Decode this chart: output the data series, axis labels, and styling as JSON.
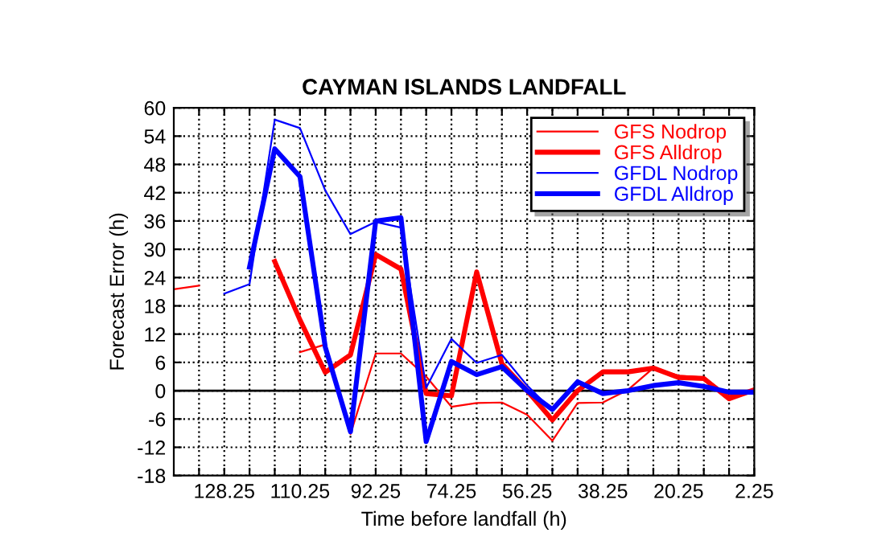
{
  "chart_data": {
    "type": "line",
    "title": "CAYMAN ISLANDS LANDFALL",
    "xlabel": "Time before landfall (h)",
    "ylabel": "Forecast Error (h)",
    "x": [
      140.25,
      134.25,
      128.25,
      122.25,
      116.25,
      110.25,
      104.25,
      98.25,
      92.25,
      86.25,
      80.25,
      74.25,
      68.25,
      62.25,
      56.25,
      50.25,
      44.25,
      38.25,
      32.25,
      26.25,
      20.25,
      14.25,
      8.25,
      2.25
    ],
    "series": [
      {
        "name": "GFS Nodrop",
        "color": "#ff0000",
        "values": [
          21.5,
          22.3,
          null,
          null,
          null,
          8.2,
          9.8,
          -9.2,
          7.9,
          7.9,
          3.0,
          -3.4,
          -2.6,
          -2.5,
          -5.1,
          -10.6,
          -2.6,
          -2.5,
          0.2,
          4.8,
          3.2,
          2.8,
          -1.1,
          0.2
        ]
      },
      {
        "name": "GFS Alldrop",
        "color": "#ff0000",
        "values": [
          null,
          null,
          null,
          null,
          27.4,
          15.0,
          3.9,
          7.6,
          28.9,
          25.8,
          -0.6,
          -1.1,
          25.2,
          5.7,
          0.0,
          -6.2,
          0.0,
          4.0,
          4.0,
          4.8,
          2.8,
          2.6,
          -1.7,
          0.2
        ]
      },
      {
        "name": "GFDL Nodrop",
        "color": "#0000ff",
        "values": [
          null,
          null,
          20.6,
          22.6,
          57.5,
          55.7,
          42.5,
          33.2,
          35.8,
          34.6,
          0.6,
          11.0,
          5.9,
          7.6,
          1.1,
          -4.2,
          1.7,
          -0.6,
          0.2,
          1.1,
          1.9,
          0.8,
          -0.2,
          -0.2
        ]
      },
      {
        "name": "GFDL Alldrop",
        "color": "#0000ff",
        "values": [
          null,
          null,
          null,
          26.2,
          51.3,
          45.4,
          9.3,
          -8.7,
          36.0,
          36.7,
          -10.8,
          6.2,
          3.4,
          5.1,
          0.0,
          -4.0,
          1.9,
          -0.6,
          0.0,
          1.1,
          1.7,
          0.9,
          -0.3,
          -0.3
        ]
      }
    ],
    "xlim": [
      140.25,
      2.25
    ],
    "xticks": [
      {
        "value": 134.25,
        "label": null
      },
      128.25,
      {
        "value": 122.25,
        "label": null
      },
      {
        "value": 116.25,
        "label": null
      },
      110.25,
      {
        "value": 104.25,
        "label": null
      },
      {
        "value": 98.25,
        "label": null
      },
      92.25,
      {
        "value": 86.25,
        "label": null
      },
      {
        "value": 80.25,
        "label": null
      },
      74.25,
      {
        "value": 68.25,
        "label": null
      },
      {
        "value": 62.25,
        "label": null
      },
      56.25,
      {
        "value": 50.25,
        "label": null
      },
      {
        "value": 44.25,
        "label": null
      },
      38.25,
      {
        "value": 32.25,
        "label": null
      },
      {
        "value": 26.25,
        "label": null
      },
      20.25,
      {
        "value": 14.25,
        "label": null
      },
      {
        "value": 8.25,
        "label": null
      },
      2.25
    ],
    "ylim": [
      -18,
      60
    ],
    "yticks": [
      -18,
      -12,
      -6,
      0,
      6,
      12,
      18,
      24,
      30,
      36,
      42,
      48,
      54,
      60
    ],
    "ref_lines": [
      {
        "axis": "y",
        "value": 0,
        "color": "#000000",
        "line_style": "solid"
      }
    ],
    "grid": true,
    "legend": "top right",
    "marker": "none",
    "line_style": "solid"
  }
}
